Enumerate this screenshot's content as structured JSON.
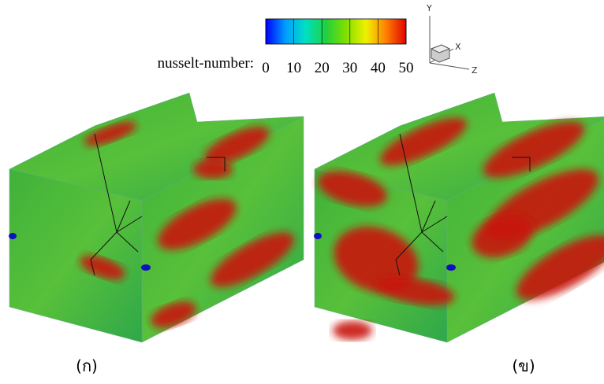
{
  "colorbar": {
    "label": "nusselt-number:",
    "ticks": [
      0,
      10,
      20,
      30,
      40,
      50
    ],
    "lim": [
      0,
      50
    ],
    "colors": [
      "#0000ff",
      "#00a0ff",
      "#00e0c0",
      "#20d040",
      "#80e000",
      "#f0f000",
      "#ff8000",
      "#e00000"
    ]
  },
  "axes": {
    "y": "Y",
    "x": "X",
    "z": "Z"
  },
  "panels": [
    {
      "label": "(ก)"
    },
    {
      "label": "(ข)"
    }
  ]
}
